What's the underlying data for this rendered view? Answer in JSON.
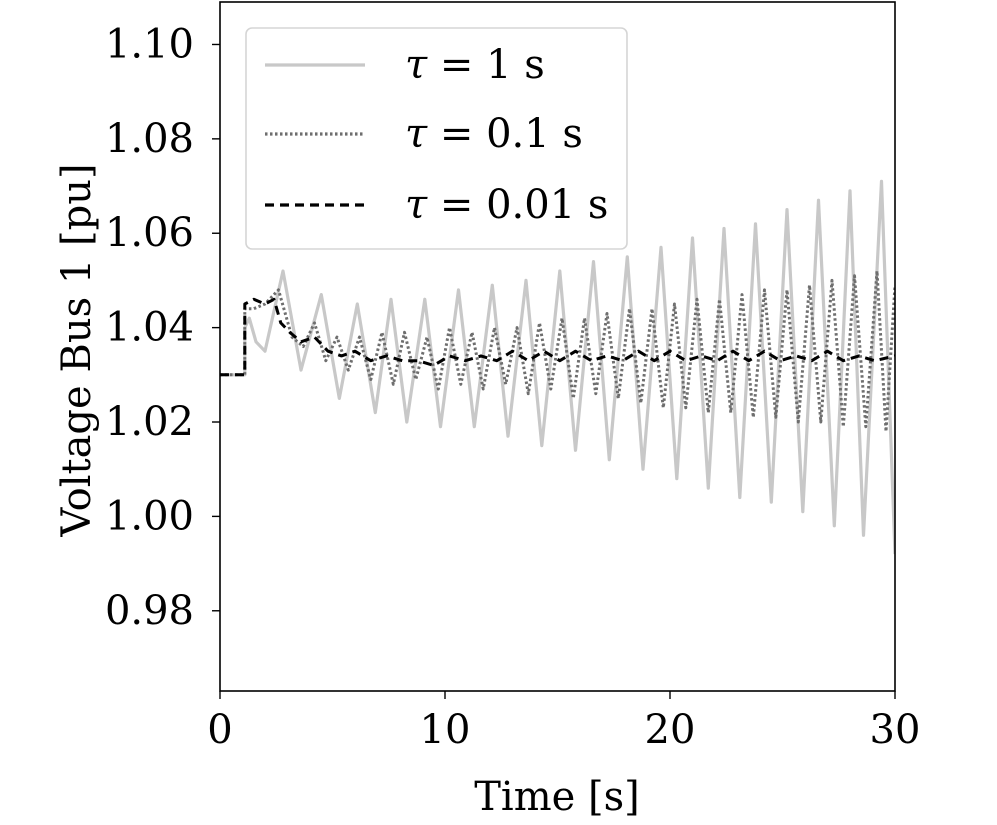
{
  "chart_data": {
    "type": "line",
    "xlabel": "Time [s]",
    "ylabel": "Voltage Bus 1 [pu]",
    "xlim": [
      0,
      30
    ],
    "ylim": [
      0.963,
      1.109
    ],
    "xticks": [
      0,
      10,
      20,
      30
    ],
    "xtick_labels": [
      "0",
      "10",
      "20",
      "30"
    ],
    "yticks": [
      0.98,
      1.0,
      1.02,
      1.04,
      1.06,
      1.08,
      1.1
    ],
    "ytick_labels": [
      "0.98",
      "1.00",
      "1.02",
      "1.04",
      "1.06",
      "1.08",
      "1.10"
    ],
    "grid": false,
    "legend_position": "top-left",
    "series": [
      {
        "name": "τ = 1 s",
        "legend_symbol": "τ",
        "legend_rest": " = 1 s",
        "color": "#c8c8c8",
        "dash": "solid",
        "x": [
          0,
          1.1,
          1.1,
          1.3,
          1.6,
          2.0,
          2.8,
          3.6,
          4.5,
          5.3,
          6.1,
          6.9,
          7.6,
          8.3,
          9.1,
          9.8,
          10.6,
          11.3,
          12.1,
          12.8,
          13.6,
          14.3,
          15.1,
          15.8,
          16.6,
          17.3,
          18.1,
          18.8,
          19.6,
          20.3,
          21.0,
          21.7,
          22.4,
          23.1,
          23.8,
          24.5,
          25.2,
          25.9,
          26.6,
          27.3,
          28.0,
          28.6,
          29.4,
          30.0
        ],
        "y": [
          1.03,
          1.03,
          1.04,
          1.042,
          1.037,
          1.035,
          1.052,
          1.031,
          1.047,
          1.025,
          1.045,
          1.022,
          1.046,
          1.02,
          1.046,
          1.019,
          1.048,
          1.019,
          1.049,
          1.017,
          1.05,
          1.015,
          1.052,
          1.014,
          1.054,
          1.012,
          1.055,
          1.01,
          1.057,
          1.008,
          1.059,
          1.006,
          1.061,
          1.004,
          1.062,
          1.003,
          1.065,
          1.001,
          1.067,
          0.998,
          1.069,
          0.996,
          1.071,
          0.992
        ]
      },
      {
        "name": "τ = 0.1 s",
        "legend_symbol": "τ",
        "legend_rest": " = 0.1 s",
        "color": "#6e6e6e",
        "dash": "dotted",
        "x": [
          0,
          1.1,
          1.1,
          1.5,
          2.0,
          2.6,
          3.2,
          3.7,
          4.2,
          4.7,
          5.2,
          5.7,
          6.2,
          6.7,
          7.2,
          7.7,
          8.2,
          8.7,
          9.2,
          9.7,
          10.2,
          10.7,
          11.2,
          11.7,
          12.2,
          12.7,
          13.2,
          13.7,
          14.2,
          14.7,
          15.2,
          15.7,
          16.2,
          16.7,
          17.2,
          17.7,
          18.2,
          18.7,
          19.2,
          19.7,
          20.2,
          20.7,
          21.2,
          21.7,
          22.2,
          22.7,
          23.2,
          23.7,
          24.2,
          24.7,
          25.2,
          25.7,
          26.2,
          26.7,
          27.2,
          27.7,
          28.2,
          28.7,
          29.2,
          29.6,
          30.0
        ],
        "y": [
          1.03,
          1.03,
          1.044,
          1.044,
          1.045,
          1.048,
          1.038,
          1.036,
          1.041,
          1.033,
          1.038,
          1.031,
          1.038,
          1.029,
          1.039,
          1.028,
          1.039,
          1.029,
          1.038,
          1.027,
          1.04,
          1.028,
          1.039,
          1.027,
          1.04,
          1.028,
          1.04,
          1.026,
          1.041,
          1.027,
          1.042,
          1.025,
          1.042,
          1.026,
          1.043,
          1.025,
          1.044,
          1.024,
          1.044,
          1.023,
          1.045,
          1.023,
          1.046,
          1.022,
          1.046,
          1.022,
          1.047,
          1.021,
          1.048,
          1.021,
          1.048,
          1.02,
          1.049,
          1.02,
          1.05,
          1.019,
          1.051,
          1.019,
          1.052,
          1.018,
          1.049
        ]
      },
      {
        "name": "τ = 0.01 s",
        "legend_symbol": "τ",
        "legend_rest": " = 0.01 s",
        "color": "#000000",
        "dash": "dashed",
        "x": [
          0,
          1.1,
          1.1,
          1.5,
          2.0,
          2.4,
          2.7,
          3.1,
          3.6,
          4.2,
          4.8,
          5.4,
          6.0,
          6.7,
          7.4,
          8.1,
          8.8,
          9.5,
          10.2,
          10.9,
          11.6,
          12.3,
          13.0,
          13.7,
          14.4,
          15.1,
          15.8,
          16.5,
          17.2,
          17.9,
          18.6,
          19.3,
          20.0,
          20.7,
          21.4,
          22.1,
          22.8,
          23.5,
          24.2,
          24.9,
          25.6,
          26.3,
          27.0,
          27.7,
          28.4,
          29.1,
          30.0
        ],
        "y": [
          1.03,
          1.03,
          1.045,
          1.046,
          1.045,
          1.046,
          1.041,
          1.039,
          1.037,
          1.038,
          1.035,
          1.034,
          1.035,
          1.033,
          1.034,
          1.033,
          1.033,
          1.032,
          1.034,
          1.033,
          1.034,
          1.033,
          1.035,
          1.033,
          1.035,
          1.033,
          1.035,
          1.033,
          1.034,
          1.033,
          1.035,
          1.033,
          1.035,
          1.033,
          1.034,
          1.033,
          1.035,
          1.033,
          1.035,
          1.033,
          1.034,
          1.033,
          1.035,
          1.033,
          1.034,
          1.033,
          1.034
        ]
      }
    ]
  }
}
